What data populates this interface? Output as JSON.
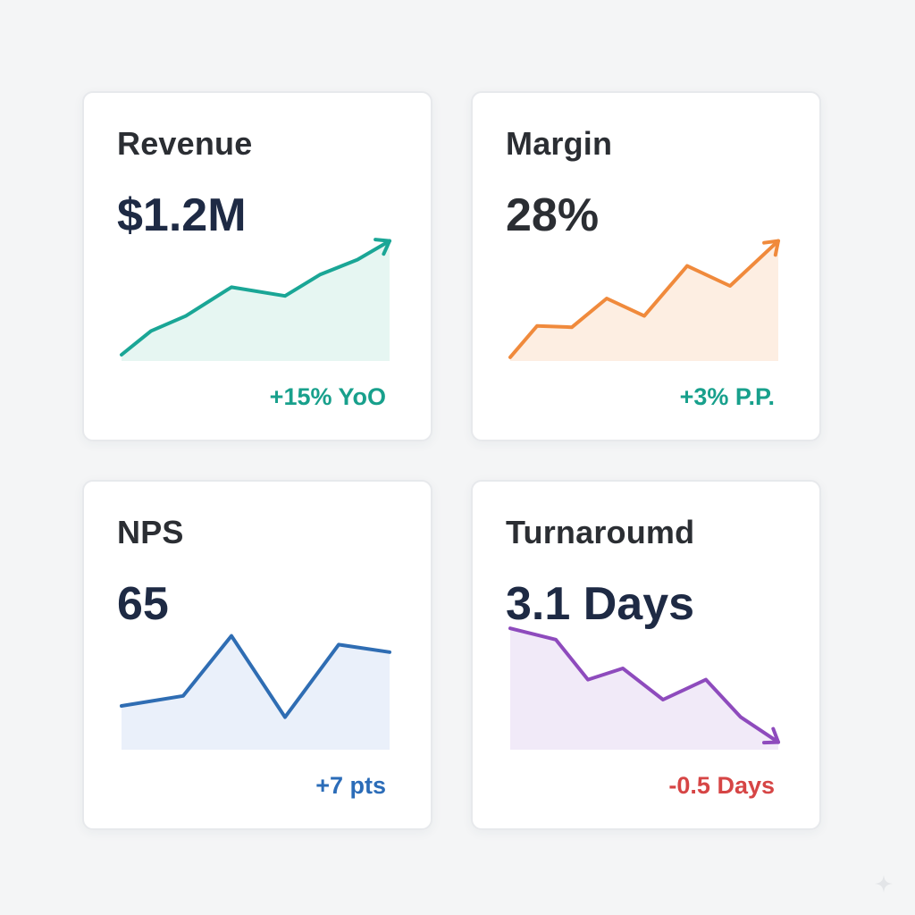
{
  "colors": {
    "title": "#2b2e33",
    "value": "#1e2a44",
    "positive": "#18a08c",
    "negative": "#d64545"
  },
  "chart_data": [
    {
      "type": "area",
      "title": "Revenue",
      "value": "$1.2M",
      "delta": "+15% YoO",
      "delta_color": "#18a08c",
      "line_color": "#1aa696",
      "fill_color": "#e6f6f2",
      "direction": "up",
      "ylim": [
        0,
        100
      ],
      "values": [
        5,
        24,
        36,
        59,
        52,
        69,
        81,
        96
      ],
      "x": [
        0,
        0.11,
        0.24,
        0.41,
        0.61,
        0.74,
        0.88,
        1.0
      ]
    },
    {
      "type": "area",
      "title": "Margin",
      "value": "28%",
      "delta": "+3% P.P.",
      "delta_color": "#18a08c",
      "line_color": "#f08a3c",
      "fill_color": "#fdeee2",
      "direction": "up",
      "ylim": [
        0,
        100
      ],
      "values": [
        3,
        28,
        27,
        50,
        36,
        76,
        60,
        96
      ],
      "x": [
        0,
        0.1,
        0.23,
        0.36,
        0.5,
        0.66,
        0.82,
        1.0
      ]
    },
    {
      "type": "area",
      "title": "NPS",
      "value": "65",
      "delta": "+7 pts",
      "delta_color": "#2b6cb8",
      "line_color": "#2f6db3",
      "fill_color": "#eaf0fa",
      "direction": "none",
      "ylim": [
        0,
        100
      ],
      "values": [
        35,
        43,
        91,
        26,
        84,
        78
      ],
      "x": [
        0,
        0.23,
        0.41,
        0.61,
        0.81,
        1.0
      ]
    },
    {
      "type": "area",
      "title": "Turnaroumd",
      "value": "3.1 Days",
      "delta": "-0.5 Days",
      "delta_color": "#d64545",
      "line_color": "#8e4bbd",
      "fill_color": "#f1eaf8",
      "direction": "down",
      "ylim": [
        0,
        100
      ],
      "values": [
        97,
        88,
        56,
        65,
        40,
        56,
        26,
        6
      ],
      "x": [
        0,
        0.17,
        0.29,
        0.42,
        0.57,
        0.73,
        0.86,
        1.0
      ]
    }
  ]
}
